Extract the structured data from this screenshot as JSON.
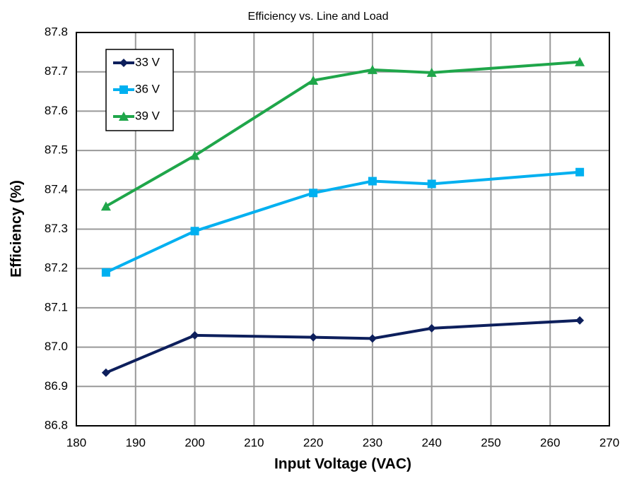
{
  "chart_data": {
    "type": "line",
    "title": "Efficiency vs. Line and Load",
    "x_label": "Input Voltage (VAC)",
    "y_label": "Efficiency (%)",
    "x": [
      185,
      200,
      220,
      230,
      240,
      265
    ],
    "series": [
      {
        "name": "33 V",
        "color": "#0d1f5c",
        "marker": "diamond",
        "values": [
          86.935,
          87.03,
          87.025,
          87.022,
          87.048,
          87.068
        ]
      },
      {
        "name": "36 V",
        "color": "#00b0f0",
        "marker": "square",
        "values": [
          87.19,
          87.295,
          87.392,
          87.422,
          87.415,
          87.445
        ]
      },
      {
        "name": "39 V",
        "color": "#1fa64a",
        "marker": "triangle",
        "values": [
          87.358,
          87.487,
          87.678,
          87.705,
          87.698,
          87.725
        ]
      }
    ],
    "xlim": [
      180,
      270
    ],
    "xticks": [
      180,
      190,
      200,
      210,
      220,
      230,
      240,
      250,
      260,
      270
    ],
    "ylim": [
      86.8,
      87.8
    ],
    "yticks": [
      86.8,
      86.9,
      {
        "value": 87.0,
        "label": "87.0"
      },
      87.1,
      87.2,
      87.3,
      87.4,
      87.5,
      87.6,
      87.7,
      87.8
    ],
    "grid": true,
    "legend": "upper left"
  }
}
